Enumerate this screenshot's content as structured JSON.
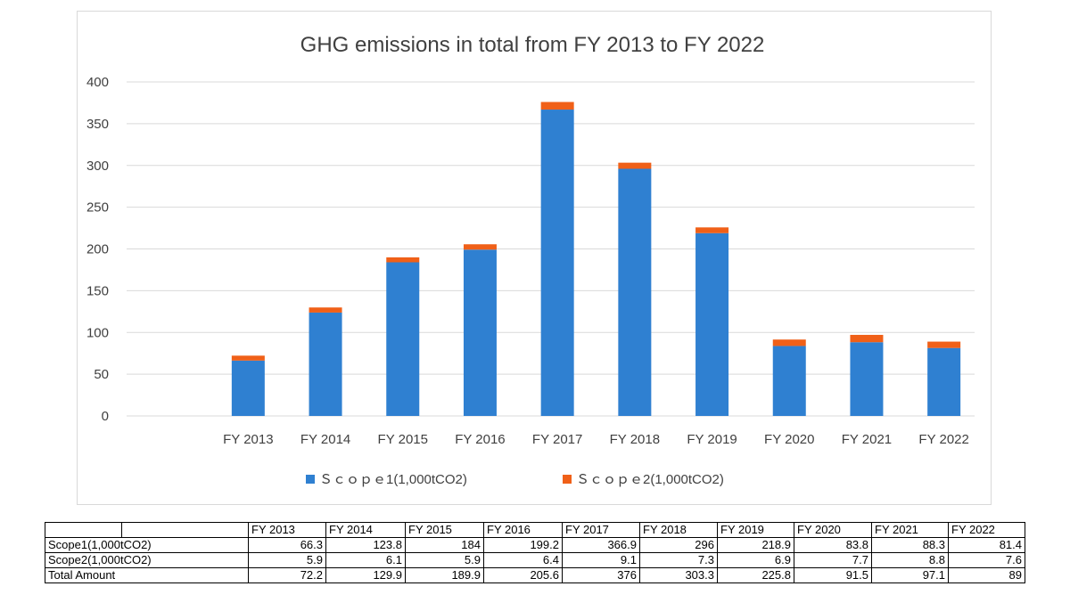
{
  "chart_data": {
    "type": "bar",
    "stacked": true,
    "title": "GHG emissions in total from FY 2013 to FY 2022",
    "categories": [
      "FY 2013",
      "FY 2014",
      "FY 2015",
      "FY 2016",
      "FY 2017",
      "FY 2018",
      "FY 2019",
      "FY 2020",
      "FY 2021",
      "FY 2022"
    ],
    "series": [
      {
        "name": "Ｓｃｏｐｅ1(1,000tCO2)",
        "color": "#2f80d1",
        "values": [
          66.3,
          123.8,
          184,
          199.2,
          366.9,
          296,
          218.9,
          83.8,
          88.3,
          81.4
        ]
      },
      {
        "name": "Ｓｃｏｐｅ2(1,000tCO2)",
        "color": "#f06018",
        "values": [
          5.9,
          6.1,
          5.9,
          6.4,
          9.1,
          7.3,
          6.9,
          7.7,
          8.8,
          7.6
        ]
      }
    ],
    "ylim": [
      0,
      400
    ],
    "yticks": [
      0,
      50,
      100,
      150,
      200,
      250,
      300,
      350,
      400
    ],
    "grid": true,
    "legend_position": "bottom"
  },
  "table": {
    "header": [
      "",
      "",
      "FY 2013",
      "FY 2014",
      "FY 2015",
      "FY 2016",
      "FY 2017",
      "FY 2018",
      "FY 2019",
      "FY 2020",
      "FY 2021",
      "FY 2022"
    ],
    "rows": [
      {
        "label": "Scope1(1,000tCO2)",
        "values": [
          "66.3",
          "123.8",
          "184",
          "199.2",
          "366.9",
          "296",
          "218.9",
          "83.8",
          "88.3",
          "81.4"
        ]
      },
      {
        "label": "Scope2(1,000tCO2)",
        "values": [
          "5.9",
          "6.1",
          "5.9",
          "6.4",
          "9.1",
          "7.3",
          "6.9",
          "7.7",
          "8.8",
          "7.6"
        ]
      },
      {
        "label": "Total Amount",
        "values": [
          "72.2",
          "129.9",
          "189.9",
          "205.6",
          "376",
          "303.3",
          "225.8",
          "91.5",
          "97.1",
          "89"
        ]
      }
    ]
  }
}
